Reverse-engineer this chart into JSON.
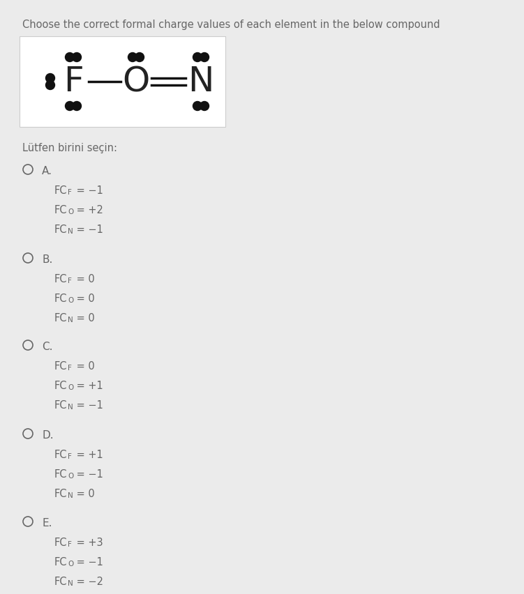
{
  "title": "Choose the correct formal charge values of each element in the below compound",
  "subtitle": "Lütfen birini seçin:",
  "bg_color": "#ebebeb",
  "molecule_box_color": "#ffffff",
  "text_color": "#888888",
  "dark_color": "#666666",
  "options": [
    {
      "label": "A.",
      "lines": [
        [
          "FC",
          "F",
          " = −1"
        ],
        [
          "FC",
          "O",
          " = +2"
        ],
        [
          "FC",
          "N",
          " = −1"
        ]
      ]
    },
    {
      "label": "B.",
      "lines": [
        [
          "FC",
          "F",
          " = 0"
        ],
        [
          "FC",
          "O",
          " = 0"
        ],
        [
          "FC",
          "N",
          " = 0"
        ]
      ]
    },
    {
      "label": "C.",
      "lines": [
        [
          "FC",
          "F",
          " = 0"
        ],
        [
          "FC",
          "O",
          " = +1"
        ],
        [
          "FC",
          "N",
          " = −1"
        ]
      ]
    },
    {
      "label": "D.",
      "lines": [
        [
          "FC",
          "F",
          " = +1"
        ],
        [
          "FC",
          "O",
          " = −1"
        ],
        [
          "FC",
          "N",
          " = 0"
        ]
      ]
    },
    {
      "label": "E.",
      "lines": [
        [
          "FC",
          "F",
          " = +3"
        ],
        [
          "FC",
          "O",
          " = −1"
        ],
        [
          "FC",
          "N",
          " = −2"
        ]
      ]
    }
  ],
  "dot_color": "#111111",
  "bond_color": "#111111",
  "letter_color": "#222222",
  "box_edge_color": "#cccccc"
}
